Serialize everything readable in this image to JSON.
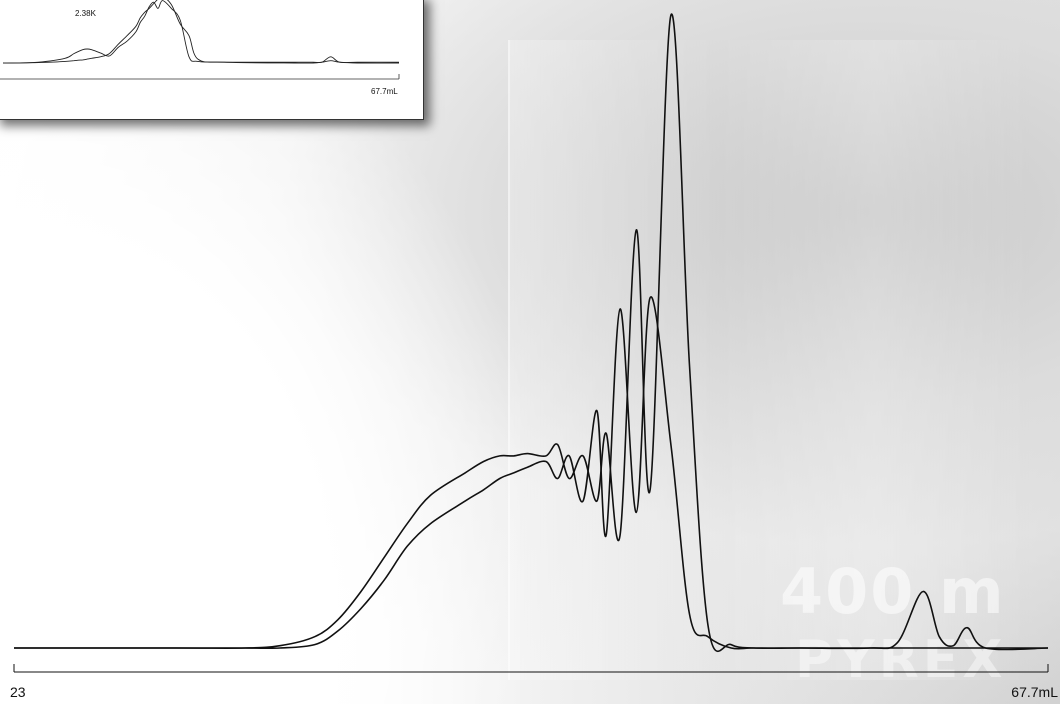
{
  "chart_data": [
    {
      "type": "line",
      "x_unit": "mL",
      "xlim": [
        23,
        67.7
      ],
      "x_tick_labels": [
        "23",
        "67.7mL"
      ],
      "grid": false,
      "legend": "none",
      "series": [
        {
          "x": [
            23,
            30,
            33,
            34.5,
            36,
            37,
            38,
            39,
            40,
            41,
            42.5,
            43.3,
            44,
            44.6,
            45.2,
            46,
            46.5,
            47,
            47.6,
            48.2,
            48.6,
            49.2,
            49.9,
            50.5,
            51.4,
            52.2,
            53,
            54,
            55,
            57,
            60,
            61.2,
            62.3,
            63,
            63.6,
            64.2,
            65,
            67.7
          ],
          "y": [
            0,
            0,
            0,
            0.2,
            1,
            2.5,
            5,
            8,
            11,
            13.5,
            15.5,
            16.5,
            17,
            17,
            17.2,
            17,
            18,
            15,
            17,
            13,
            19,
            10,
            37,
            14,
            56,
            25,
            2,
            0.3,
            0,
            0,
            0,
            0,
            0,
            0,
            0,
            0,
            0,
            0
          ]
        },
        {
          "x": [
            23,
            30,
            33,
            34.5,
            36,
            37,
            38,
            39,
            40,
            41,
            42.5,
            43.3,
            44,
            44.6,
            45.2,
            46,
            46.5,
            47,
            47.6,
            48.2,
            48.6,
            49.2,
            49.9,
            50.5,
            51.4,
            52.2,
            53,
            54,
            55,
            57,
            60,
            61.2,
            62.3,
            63,
            63.6,
            64.2,
            65,
            67.7
          ],
          "y": [
            0,
            0,
            0,
            0,
            0.3,
            1.5,
            3.5,
            6,
            9,
            11,
            13,
            14,
            15,
            15.5,
            16,
            16.5,
            15,
            17,
            13,
            21,
            10,
            30,
            12,
            31,
            18,
            3,
            1,
            0,
            0,
            0,
            0,
            0.5,
            5,
            1,
            0.2,
            1.8,
            0,
            0
          ]
        }
      ]
    },
    {
      "type": "line",
      "x_unit": "mL",
      "xlim": [
        23,
        67.7
      ],
      "x_tick_labels": [
        "67.7mL"
      ],
      "annotations": [
        "2.38K"
      ],
      "grid": false,
      "legend": "none",
      "series": [
        {
          "x": [
            23,
            24,
            27,
            30,
            31,
            32,
            32.5,
            33,
            34,
            35,
            36,
            37,
            38,
            38.5,
            39,
            39.5,
            40,
            40.5,
            41,
            42,
            43,
            44,
            45,
            48,
            56,
            58,
            59,
            60,
            61,
            63,
            67.7
          ],
          "y": [
            0,
            0,
            1,
            6,
            12,
            17,
            18,
            17,
            13,
            9,
            20,
            28,
            40,
            52,
            60,
            72,
            78,
            70,
            80,
            70,
            55,
            8,
            2,
            1,
            1,
            1,
            1,
            8,
            1,
            1,
            1
          ]
        },
        {
          "x": [
            23,
            24,
            27,
            30,
            31,
            32,
            32.5,
            33,
            34,
            35,
            36,
            37,
            38,
            38.5,
            39,
            39.5,
            40,
            40.5,
            41,
            42,
            43,
            44,
            45,
            48,
            56,
            58,
            59,
            60,
            61,
            63,
            67.7
          ],
          "y": [
            0,
            0,
            0.5,
            2,
            3,
            4,
            5,
            6,
            8,
            12,
            24,
            35,
            47,
            58,
            65,
            70,
            76,
            82,
            85,
            75,
            50,
            35,
            5,
            1,
            0,
            0,
            1,
            3,
            1,
            0,
            0
          ]
        }
      ]
    }
  ]
}
